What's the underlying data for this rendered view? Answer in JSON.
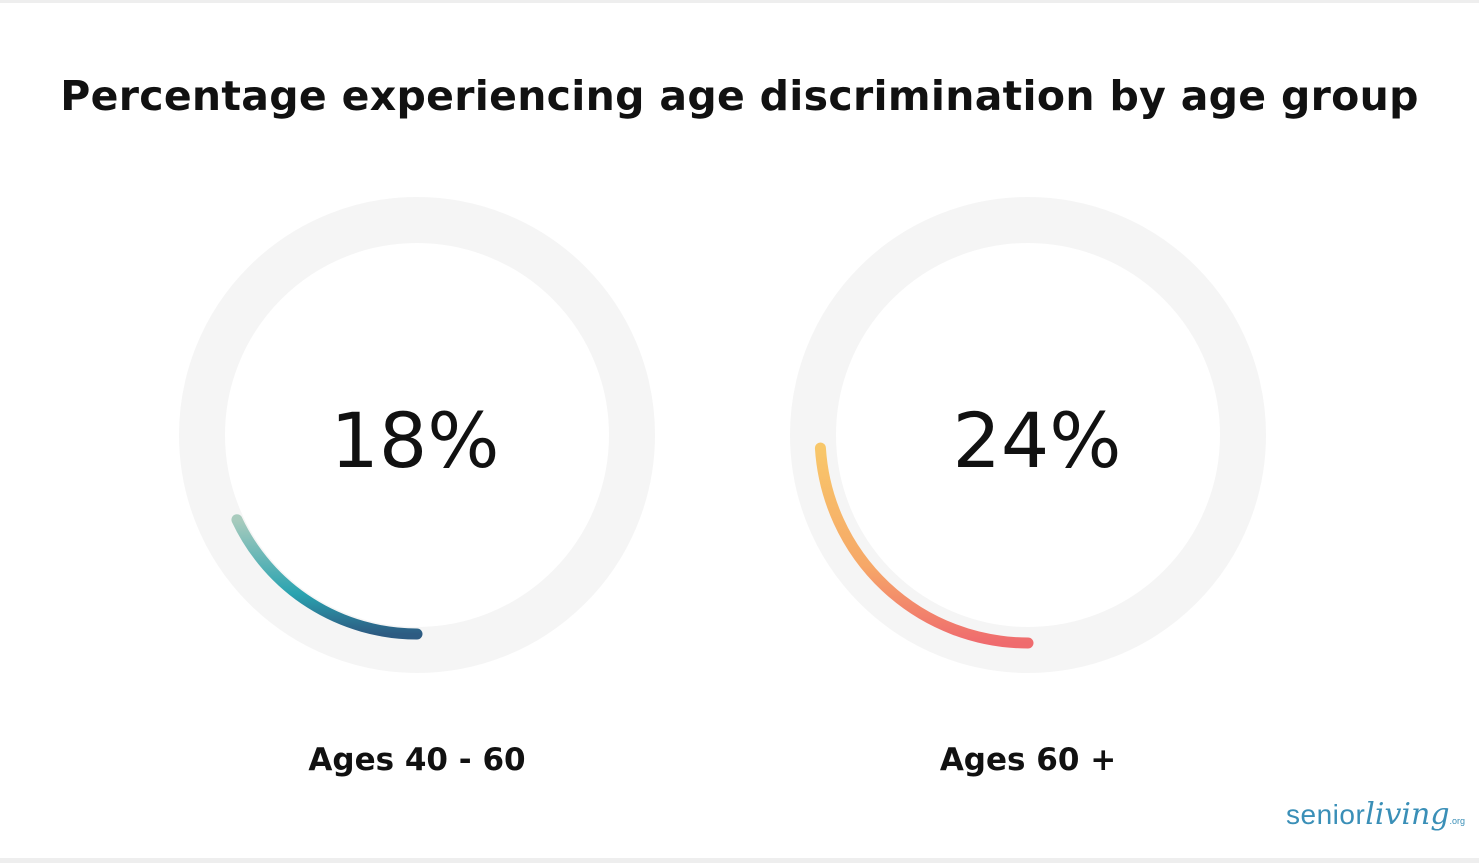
{
  "chart_data": {
    "type": "donut",
    "title": "Percentage experiencing age discrimination by age group",
    "max": 100,
    "items": [
      {
        "label": "Ages 40 - 60",
        "value": 18,
        "display": "18%",
        "gradient": [
          "#a8cbbd",
          "#2aa3b0",
          "#2d5b82"
        ]
      },
      {
        "label": "Ages 60 +",
        "value": 24,
        "display": "24%",
        "gradient": [
          "#f8c76a",
          "#f6a868",
          "#ef6b6e"
        ]
      }
    ],
    "track_color": "#f5f5f5"
  },
  "logo": {
    "senior": "senior",
    "living": "living",
    "org": ".org"
  }
}
